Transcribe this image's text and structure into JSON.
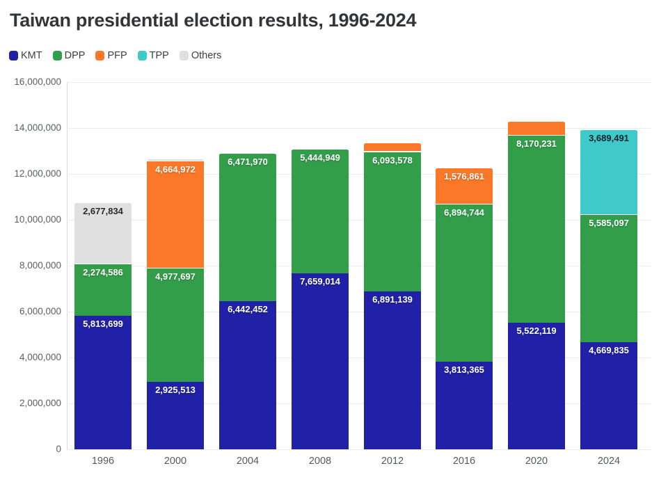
{
  "title": "Taiwan presidential election results, 1996-2024",
  "legend": [
    {
      "label": "KMT",
      "color": "#2121a8"
    },
    {
      "label": "DPP",
      "color": "#339e4a"
    },
    {
      "label": "PFP",
      "color": "#fb7828"
    },
    {
      "label": "TPP",
      "color": "#3fc9c9"
    },
    {
      "label": "Others",
      "color": "#e0e0e0"
    }
  ],
  "chart_data": {
    "type": "bar",
    "stacked": true,
    "title": "Taiwan presidential election results, 1996-2024",
    "categories": [
      "1996",
      "2000",
      "2004",
      "2008",
      "2012",
      "2016",
      "2020",
      "2024"
    ],
    "series": [
      {
        "name": "KMT",
        "color": "#2121a8",
        "label_color": "#ffffff",
        "values": [
          5813699,
          2925513,
          6442452,
          7659014,
          6891139,
          3813365,
          5522119,
          4669835
        ]
      },
      {
        "name": "DPP",
        "color": "#339e4a",
        "label_color": "#ffffff",
        "values": [
          2274586,
          4977697,
          6471970,
          5444949,
          6093578,
          6894744,
          8170231,
          5585097
        ]
      },
      {
        "name": "PFP",
        "color": "#fb7828",
        "label_color": "#ffffff",
        "values": [
          0,
          4664972,
          0,
          0,
          369588,
          1576861,
          608590,
          0
        ]
      },
      {
        "name": "TPP",
        "color": "#3fc9c9",
        "label_color": "#16202c",
        "values": [
          0,
          0,
          0,
          0,
          0,
          0,
          0,
          3689491
        ]
      },
      {
        "name": "Others",
        "color": "#e0e0e0",
        "label_color": "#2b2b2b",
        "values": [
          2677834,
          96211,
          0,
          0,
          0,
          0,
          0,
          0
        ]
      }
    ],
    "visible_segment_labels": {
      "1996": {
        "KMT": "5,813,699",
        "DPP": "2,274,586",
        "Others": "2,677,834"
      },
      "2000": {
        "KMT": "2,925,513",
        "DPP": "4,977,697",
        "PFP": "4,664,972"
      },
      "2004": {
        "KMT": "6,442,452",
        "DPP": "6,471,970"
      },
      "2008": {
        "KMT": "7,659,014",
        "DPP": "5,444,949"
      },
      "2012": {
        "KMT": "6,891,139",
        "DPP": "6,093,578"
      },
      "2016": {
        "KMT": "3,813,365",
        "DPP": "6,894,744",
        "PFP": "1,576,861"
      },
      "2020": {
        "KMT": "5,522,119",
        "DPP": "8,170,231"
      },
      "2024": {
        "KMT": "4,669,835",
        "DPP": "5,585,097",
        "TPP": "3,689,491"
      }
    },
    "label_threshold": 1000000,
    "xlabel": "",
    "ylabel": "",
    "ylim": [
      0,
      16000000
    ],
    "ytick_step": 2000000,
    "ytick_labels": [
      "0",
      "2,000,000",
      "4,000,000",
      "6,000,000",
      "8,000,000",
      "10,000,000",
      "12,000,000",
      "14,000,000",
      "16,000,000"
    ],
    "grid": true,
    "legend_position": "top-left"
  }
}
